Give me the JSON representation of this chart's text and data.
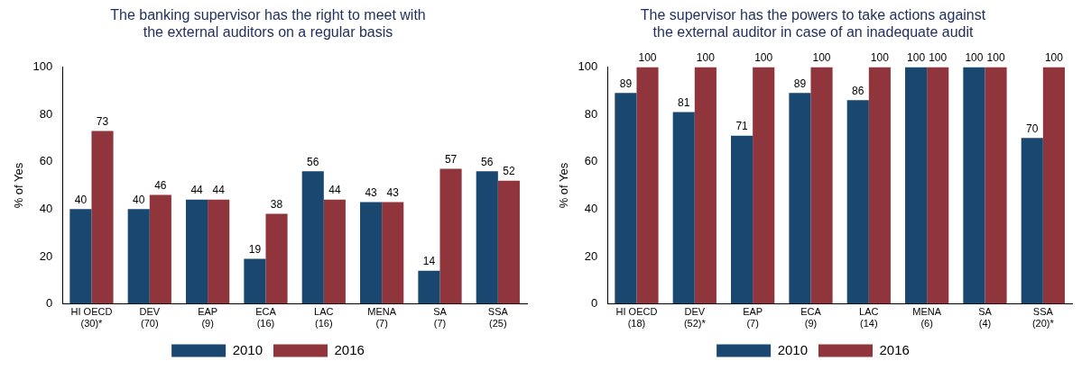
{
  "chart_data": [
    {
      "type": "bar",
      "title": "The banking supervisor has the right to meet with\nthe external auditors on a regular basis",
      "ylabel": "% of Yes",
      "categories": [
        "HI OECD\n(30)*",
        "DEV\n(70)",
        "EAP\n(9)",
        "ECA\n(16)",
        "LAC\n(16)",
        "MENA\n(7)",
        "SA\n(7)",
        "SSA\n(25)"
      ],
      "series": [
        {
          "name": "2010",
          "color": "#1a476f",
          "values": [
            40,
            40,
            44,
            19,
            56,
            43,
            14,
            56
          ]
        },
        {
          "name": "2016",
          "color": "#90353b",
          "values": [
            73,
            46,
            44,
            38,
            44,
            43,
            57,
            52
          ]
        }
      ],
      "ylim": [
        0,
        100
      ],
      "yticks": [
        0,
        20,
        40,
        60,
        80,
        100
      ],
      "grid": false,
      "legend": "bottom",
      "data_labels": true
    },
    {
      "type": "bar",
      "title": "The supervisor has the powers to take actions against\nthe external auditor in case of an inadequate audit",
      "ylabel": "% of Yes",
      "categories": [
        "HI OECD\n(18)",
        "DEV\n(52)*",
        "EAP\n(7)",
        "ECA\n(9)",
        "LAC\n(14)",
        "MENA\n(6)",
        "SA\n(4)",
        "SSA\n(20)*"
      ],
      "series": [
        {
          "name": "2010",
          "color": "#1a476f",
          "values": [
            89,
            81,
            71,
            89,
            86,
            100,
            100,
            70
          ]
        },
        {
          "name": "2016",
          "color": "#90353b",
          "values": [
            100,
            100,
            100,
            100,
            100,
            100,
            100,
            100
          ]
        }
      ],
      "ylim": [
        0,
        100
      ],
      "yticks": [
        0,
        20,
        40,
        60,
        80,
        100
      ],
      "grid": false,
      "legend": "bottom",
      "data_labels": true
    }
  ]
}
